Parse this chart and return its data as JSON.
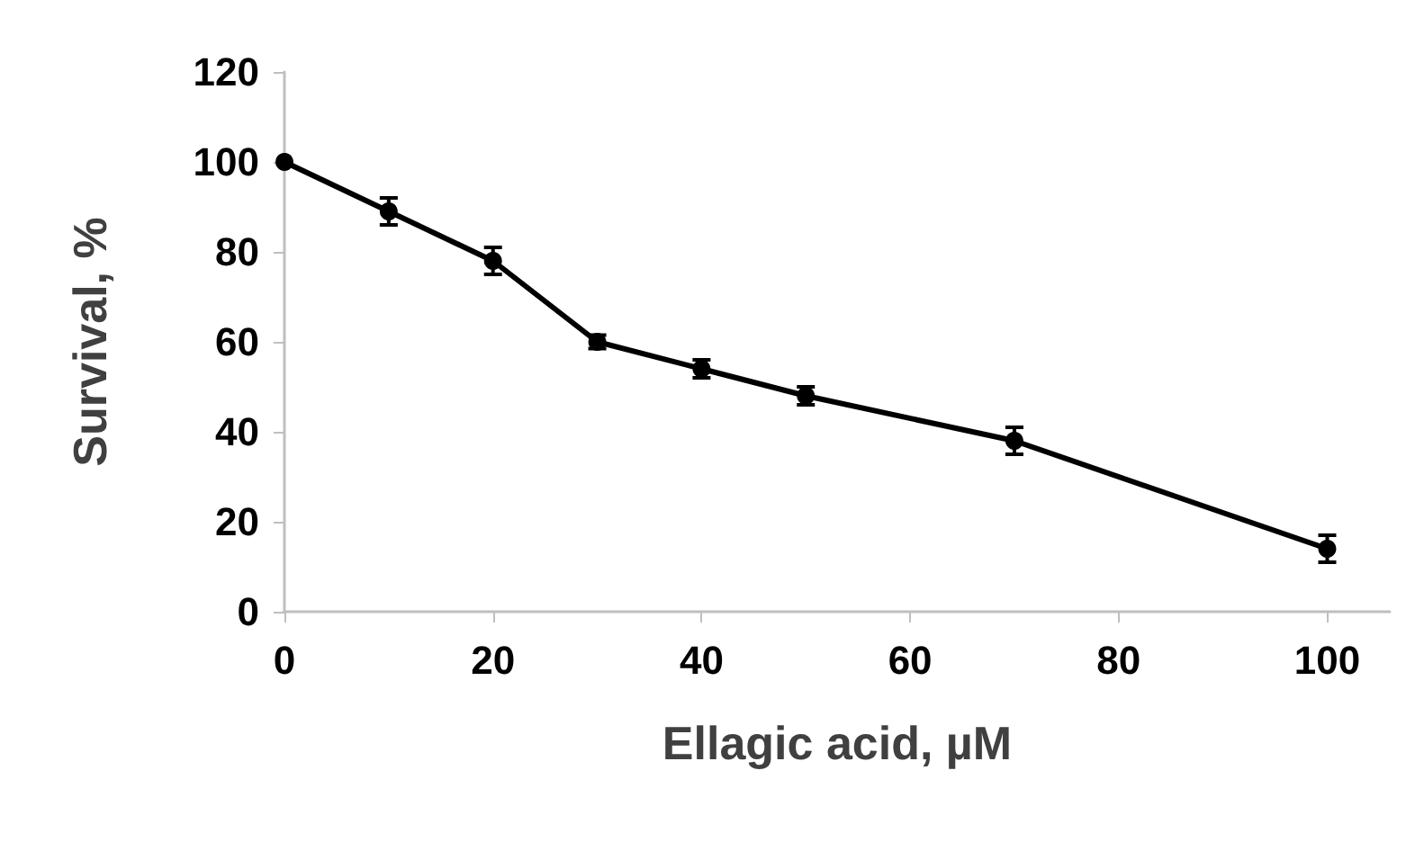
{
  "chart_data": {
    "type": "line",
    "xlabel": "Ellagic acid, µM",
    "ylabel": "Survival, %",
    "x": [
      0,
      10,
      20,
      30,
      40,
      50,
      70,
      100
    ],
    "series": [
      {
        "color": "#000000",
        "values": [
          100,
          89,
          78,
          60,
          54,
          48,
          38,
          14
        ],
        "errors": [
          null,
          3,
          3,
          1.5,
          2,
          2,
          3,
          3
        ]
      }
    ],
    "xlim": [
      0,
      106
    ],
    "xticks": [
      0,
      20,
      40,
      60,
      80,
      100
    ],
    "ylim": [
      0,
      120
    ],
    "yticks": [
      0,
      20,
      40,
      60,
      80,
      100,
      120
    ],
    "grid": false,
    "marker": "circle",
    "line_style": "solid"
  }
}
